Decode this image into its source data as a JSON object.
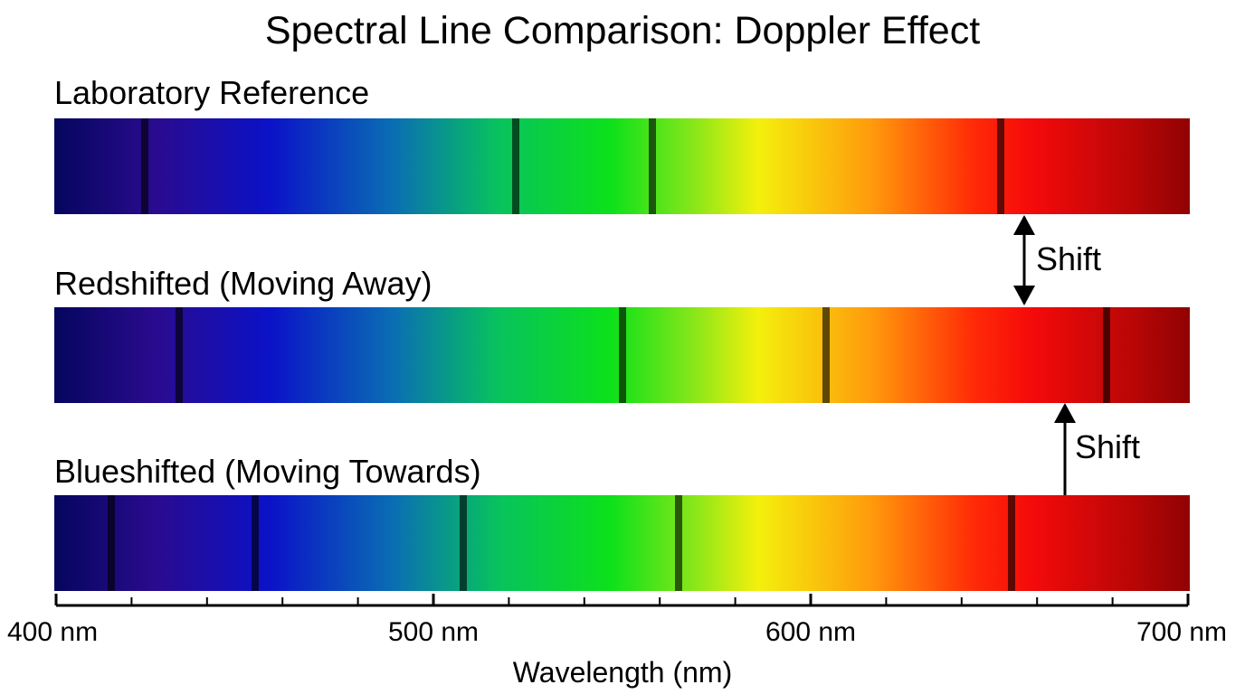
{
  "title": "Spectral Line Comparison: Doppler Effect",
  "spectra": [
    {
      "id": "lab",
      "label": "Laboratory Reference",
      "lines_nm": [
        424,
        522,
        558,
        650
      ]
    },
    {
      "id": "red",
      "label": "Redshifted (Moving Away)",
      "lines_nm": [
        433,
        550,
        604,
        678
      ]
    },
    {
      "id": "blue",
      "label": "Blueshifted (Moving Towards)",
      "lines_nm": [
        415,
        453,
        508,
        565,
        653
      ]
    }
  ],
  "annotations": {
    "shift_1": "Shift",
    "shift_2": "Shift"
  },
  "axis": {
    "min_nm": 400,
    "max_nm": 700,
    "major_ticks": [
      400,
      500,
      600,
      700
    ],
    "minor_step_nm": 20,
    "tick_labels": [
      "400 nm",
      "500 nm",
      "600 nm",
      "700 nm"
    ],
    "label": "Wavelength (nm)"
  }
}
